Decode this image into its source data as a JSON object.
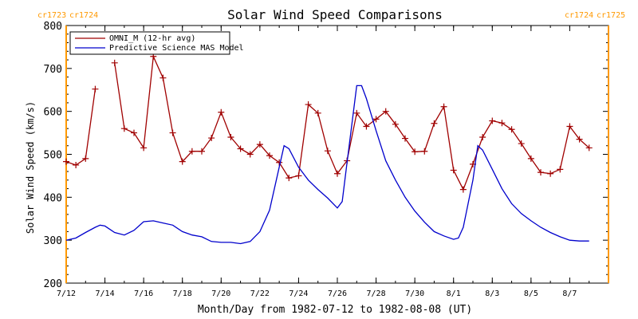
{
  "chart_data": {
    "type": "line",
    "title": "Solar Wind Speed Comparisons",
    "xlabel": "Month/Day from 1982-07-12 to 1982-08-08 (UT)",
    "ylabel": "Solar Wind Speed (km/s)",
    "ylim": [
      200,
      800
    ],
    "yticks": [
      200,
      300,
      400,
      500,
      600,
      700,
      800
    ],
    "xlim": [
      "1982-07-12",
      "1982-08-09"
    ],
    "xticks": [
      {
        "date": "1982-07-12",
        "label": "7/12"
      },
      {
        "date": "1982-07-14",
        "label": "7/14"
      },
      {
        "date": "1982-07-16",
        "label": "7/16"
      },
      {
        "date": "1982-07-18",
        "label": "7/18"
      },
      {
        "date": "1982-07-20",
        "label": "7/20"
      },
      {
        "date": "1982-07-22",
        "label": "7/22"
      },
      {
        "date": "1982-07-24",
        "label": "7/24"
      },
      {
        "date": "1982-07-26",
        "label": "7/26"
      },
      {
        "date": "1982-07-28",
        "label": "7/28"
      },
      {
        "date": "1982-07-30",
        "label": "7/30"
      },
      {
        "date": "1982-08-01",
        "label": "8/1"
      },
      {
        "date": "1982-08-03",
        "label": "8/3"
      },
      {
        "date": "1982-08-05",
        "label": "8/5"
      },
      {
        "date": "1982-08-07",
        "label": "8/7"
      }
    ],
    "legend_position": "top-left",
    "carrington_markers": [
      {
        "date": "1982-07-12",
        "labels": [
          "cr1723",
          "cr1724"
        ],
        "color": "#ff9900"
      },
      {
        "date": "1982-08-09",
        "labels": [
          "cr1724",
          "cr1725"
        ],
        "color": "#ff9900"
      }
    ],
    "series": [
      {
        "name": "OMNI_M (12-hr avg)",
        "color": "#a00000",
        "marker": "plus",
        "gaps_after": [
          3
        ],
        "points": [
          [
            "1982-07-12T00:00",
            483
          ],
          [
            "1982-07-12T12:00",
            475
          ],
          [
            "1982-07-13T00:00",
            490
          ],
          [
            "1982-07-13T12:00",
            652
          ],
          [
            "1982-07-14T12:00",
            713
          ],
          [
            "1982-07-15T00:00",
            560
          ],
          [
            "1982-07-15T12:00",
            550
          ],
          [
            "1982-07-16T00:00",
            515
          ],
          [
            "1982-07-16T12:00",
            728
          ],
          [
            "1982-07-17T00:00",
            678
          ],
          [
            "1982-07-17T12:00",
            550
          ],
          [
            "1982-07-18T00:00",
            483
          ],
          [
            "1982-07-18T12:00",
            507
          ],
          [
            "1982-07-19T00:00",
            507
          ],
          [
            "1982-07-19T12:00",
            538
          ],
          [
            "1982-07-20T00:00",
            598
          ],
          [
            "1982-07-20T12:00",
            540
          ],
          [
            "1982-07-21T00:00",
            513
          ],
          [
            "1982-07-21T12:00",
            500
          ],
          [
            "1982-07-22T00:00",
            523
          ],
          [
            "1982-07-22T12:00",
            497
          ],
          [
            "1982-07-23T00:00",
            481
          ],
          [
            "1982-07-23T12:00",
            445
          ],
          [
            "1982-07-24T00:00",
            450
          ],
          [
            "1982-07-24T12:00",
            616
          ],
          [
            "1982-07-25T00:00",
            596
          ],
          [
            "1982-07-25T12:00",
            508
          ],
          [
            "1982-07-26T00:00",
            455
          ],
          [
            "1982-07-26T12:00",
            485
          ],
          [
            "1982-07-27T00:00",
            596
          ],
          [
            "1982-07-27T12:00",
            565
          ],
          [
            "1982-07-28T00:00",
            582
          ],
          [
            "1982-07-28T12:00",
            600
          ],
          [
            "1982-07-29T00:00",
            570
          ],
          [
            "1982-07-29T12:00",
            537
          ],
          [
            "1982-07-30T00:00",
            506
          ],
          [
            "1982-07-30T12:00",
            507
          ],
          [
            "1982-07-31T00:00",
            572
          ],
          [
            "1982-07-31T12:00",
            611
          ],
          [
            "1982-08-01T00:00",
            463
          ],
          [
            "1982-08-01T12:00",
            418
          ],
          [
            "1982-08-02T00:00",
            477
          ],
          [
            "1982-08-02T12:00",
            540
          ],
          [
            "1982-08-03T00:00",
            578
          ],
          [
            "1982-08-03T12:00",
            573
          ],
          [
            "1982-08-04T00:00",
            558
          ],
          [
            "1982-08-04T12:00",
            525
          ],
          [
            "1982-08-05T00:00",
            490
          ],
          [
            "1982-08-05T12:00",
            458
          ],
          [
            "1982-08-06T00:00",
            455
          ],
          [
            "1982-08-06T12:00",
            465
          ],
          [
            "1982-08-07T00:00",
            565
          ],
          [
            "1982-08-07T12:00",
            535
          ],
          [
            "1982-08-08T00:00",
            515
          ]
        ]
      },
      {
        "name": "Predictive Science MAS Model",
        "color": "#0000cc",
        "marker": "none",
        "points": [
          [
            "1982-07-12T00:00",
            300
          ],
          [
            "1982-07-12T12:00",
            305
          ],
          [
            "1982-07-13T00:00",
            318
          ],
          [
            "1982-07-13T12:00",
            330
          ],
          [
            "1982-07-13T18:00",
            335
          ],
          [
            "1982-07-14T00:00",
            333
          ],
          [
            "1982-07-14T12:00",
            318
          ],
          [
            "1982-07-15T00:00",
            312
          ],
          [
            "1982-07-15T12:00",
            323
          ],
          [
            "1982-07-16T00:00",
            343
          ],
          [
            "1982-07-16T12:00",
            345
          ],
          [
            "1982-07-17T00:00",
            340
          ],
          [
            "1982-07-17T12:00",
            335
          ],
          [
            "1982-07-18T00:00",
            320
          ],
          [
            "1982-07-18T12:00",
            312
          ],
          [
            "1982-07-19T00:00",
            308
          ],
          [
            "1982-07-19T12:00",
            297
          ],
          [
            "1982-07-20T00:00",
            295
          ],
          [
            "1982-07-20T12:00",
            295
          ],
          [
            "1982-07-21T00:00",
            292
          ],
          [
            "1982-07-21T12:00",
            297
          ],
          [
            "1982-07-22T00:00",
            320
          ],
          [
            "1982-07-22T12:00",
            370
          ],
          [
            "1982-07-23T00:00",
            470
          ],
          [
            "1982-07-23T06:00",
            520
          ],
          [
            "1982-07-23T12:00",
            513
          ],
          [
            "1982-07-24T00:00",
            470
          ],
          [
            "1982-07-24T12:00",
            440
          ],
          [
            "1982-07-25T00:00",
            418
          ],
          [
            "1982-07-25T12:00",
            398
          ],
          [
            "1982-07-26T00:00",
            375
          ],
          [
            "1982-07-26T06:00",
            390
          ],
          [
            "1982-07-26T12:00",
            480
          ],
          [
            "1982-07-27T00:00",
            660
          ],
          [
            "1982-07-27T06:00",
            660
          ],
          [
            "1982-07-27T12:00",
            630
          ],
          [
            "1982-07-28T00:00",
            555
          ],
          [
            "1982-07-28T12:00",
            485
          ],
          [
            "1982-07-29T00:00",
            440
          ],
          [
            "1982-07-29T12:00",
            400
          ],
          [
            "1982-07-30T00:00",
            368
          ],
          [
            "1982-07-30T12:00",
            342
          ],
          [
            "1982-07-31T00:00",
            320
          ],
          [
            "1982-07-31T12:00",
            310
          ],
          [
            "1982-08-01T00:00",
            302
          ],
          [
            "1982-08-01T06:00",
            305
          ],
          [
            "1982-08-01T12:00",
            330
          ],
          [
            "1982-08-02T00:00",
            440
          ],
          [
            "1982-08-02T06:00",
            520
          ],
          [
            "1982-08-02T12:00",
            510
          ],
          [
            "1982-08-03T00:00",
            465
          ],
          [
            "1982-08-03T12:00",
            420
          ],
          [
            "1982-08-04T00:00",
            385
          ],
          [
            "1982-08-04T12:00",
            362
          ],
          [
            "1982-08-05T00:00",
            345
          ],
          [
            "1982-08-05T12:00",
            330
          ],
          [
            "1982-08-06T00:00",
            318
          ],
          [
            "1982-08-06T12:00",
            308
          ],
          [
            "1982-08-07T00:00",
            300
          ],
          [
            "1982-08-07T12:00",
            298
          ],
          [
            "1982-08-08T00:00",
            298
          ]
        ]
      }
    ]
  }
}
